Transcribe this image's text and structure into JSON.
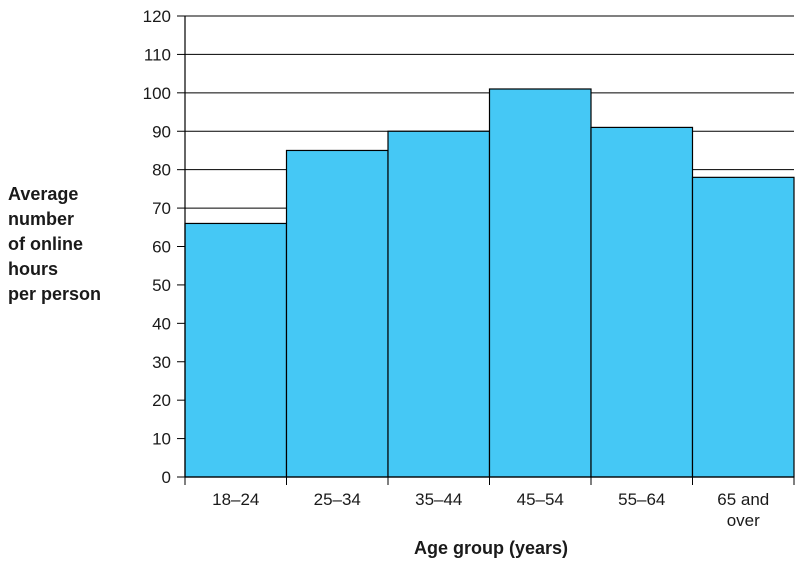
{
  "chart_data": {
    "type": "bar",
    "categories": [
      "18–24",
      "25–34",
      "35–44",
      "45–54",
      "55–64",
      "65 and over"
    ],
    "values": [
      66,
      85,
      90,
      101,
      91,
      78
    ],
    "xlabel": "Age group (years)",
    "ylabel": "Average number of online hours per person",
    "ylabel_lines": [
      "Average",
      "number",
      "of online",
      "hours",
      "per person"
    ],
    "ylim": [
      0,
      120
    ],
    "yticks": [
      0,
      10,
      20,
      30,
      40,
      50,
      60,
      70,
      80,
      90,
      100,
      110,
      120
    ],
    "grid": true,
    "bar_color": "#45c8f5",
    "gridline_color": "#000000"
  }
}
